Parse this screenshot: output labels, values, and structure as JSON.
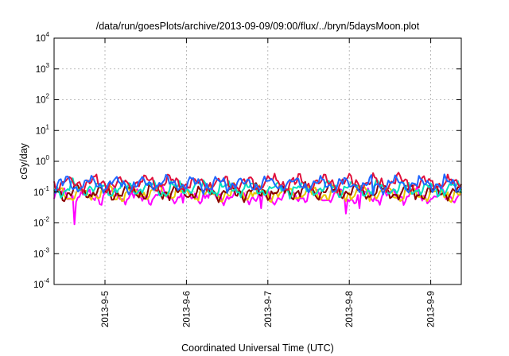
{
  "chart_data": {
    "type": "line",
    "title": "/data/run/goesPlots/archive/2013-09-09/09:00/flux/../bryn/5daysMoon.plot",
    "xlabel": "Coordinated Universal Time (UTC)",
    "ylabel": "cGy/day",
    "yscale": "log",
    "ylim": [
      0.0001,
      10000
    ],
    "xlim": [
      "2013-09-04 09:00",
      "2013-09-09 09:00"
    ],
    "grid": true,
    "legend": "none",
    "y_tick_labels": [
      {
        "base": "10",
        "exp": "4",
        "value": 10000
      },
      {
        "base": "10",
        "exp": "3",
        "value": 1000
      },
      {
        "base": "10",
        "exp": "2",
        "value": 100
      },
      {
        "base": "10",
        "exp": "1",
        "value": 10
      },
      {
        "base": "10",
        "exp": "0",
        "value": 1
      },
      {
        "base": "10",
        "exp": "-1",
        "value": 0.1
      },
      {
        "base": "10",
        "exp": "-2",
        "value": 0.01
      },
      {
        "base": "10",
        "exp": "-3",
        "value": 0.001
      },
      {
        "base": "10",
        "exp": "-4",
        "value": 0.0001
      }
    ],
    "x_ticks": [
      {
        "label": "2013-9-5",
        "value": "2013-09-05 00:00"
      },
      {
        "label": "2013-9-6",
        "value": "2013-09-06 00:00"
      },
      {
        "label": "2013-9-7",
        "value": "2013-09-07 00:00"
      },
      {
        "label": "2013-9-8",
        "value": "2013-09-08 00:00"
      },
      {
        "label": "2013-9-9",
        "value": "2013-09-09 00:00"
      }
    ],
    "series": [
      {
        "color": "#ff00ff",
        "level": 0.075,
        "dips": [
          {
            "x": "2013-09-04 15:00",
            "y": 0.009
          },
          {
            "x": "2013-09-06 22:00",
            "y": 0.03
          },
          {
            "x": "2013-09-07 23:00",
            "y": 0.02
          },
          {
            "x": "2013-09-05 23:00",
            "y": 0.045
          },
          {
            "x": "2013-09-08 03:00",
            "y": 0.03
          }
        ]
      },
      {
        "color": "#e8c800",
        "level": 0.09,
        "dips": []
      },
      {
        "color": "#8b0000",
        "level": 0.1,
        "dips": []
      },
      {
        "color": "#00e0c0",
        "level": 0.13,
        "dips": []
      },
      {
        "color": "#e0103c",
        "level": 0.2,
        "dips": []
      },
      {
        "color": "#1e66ff",
        "level": 0.18,
        "dips": [
          {
            "x": "2013-09-08 07:00",
            "y": 0.08
          }
        ]
      }
    ]
  }
}
